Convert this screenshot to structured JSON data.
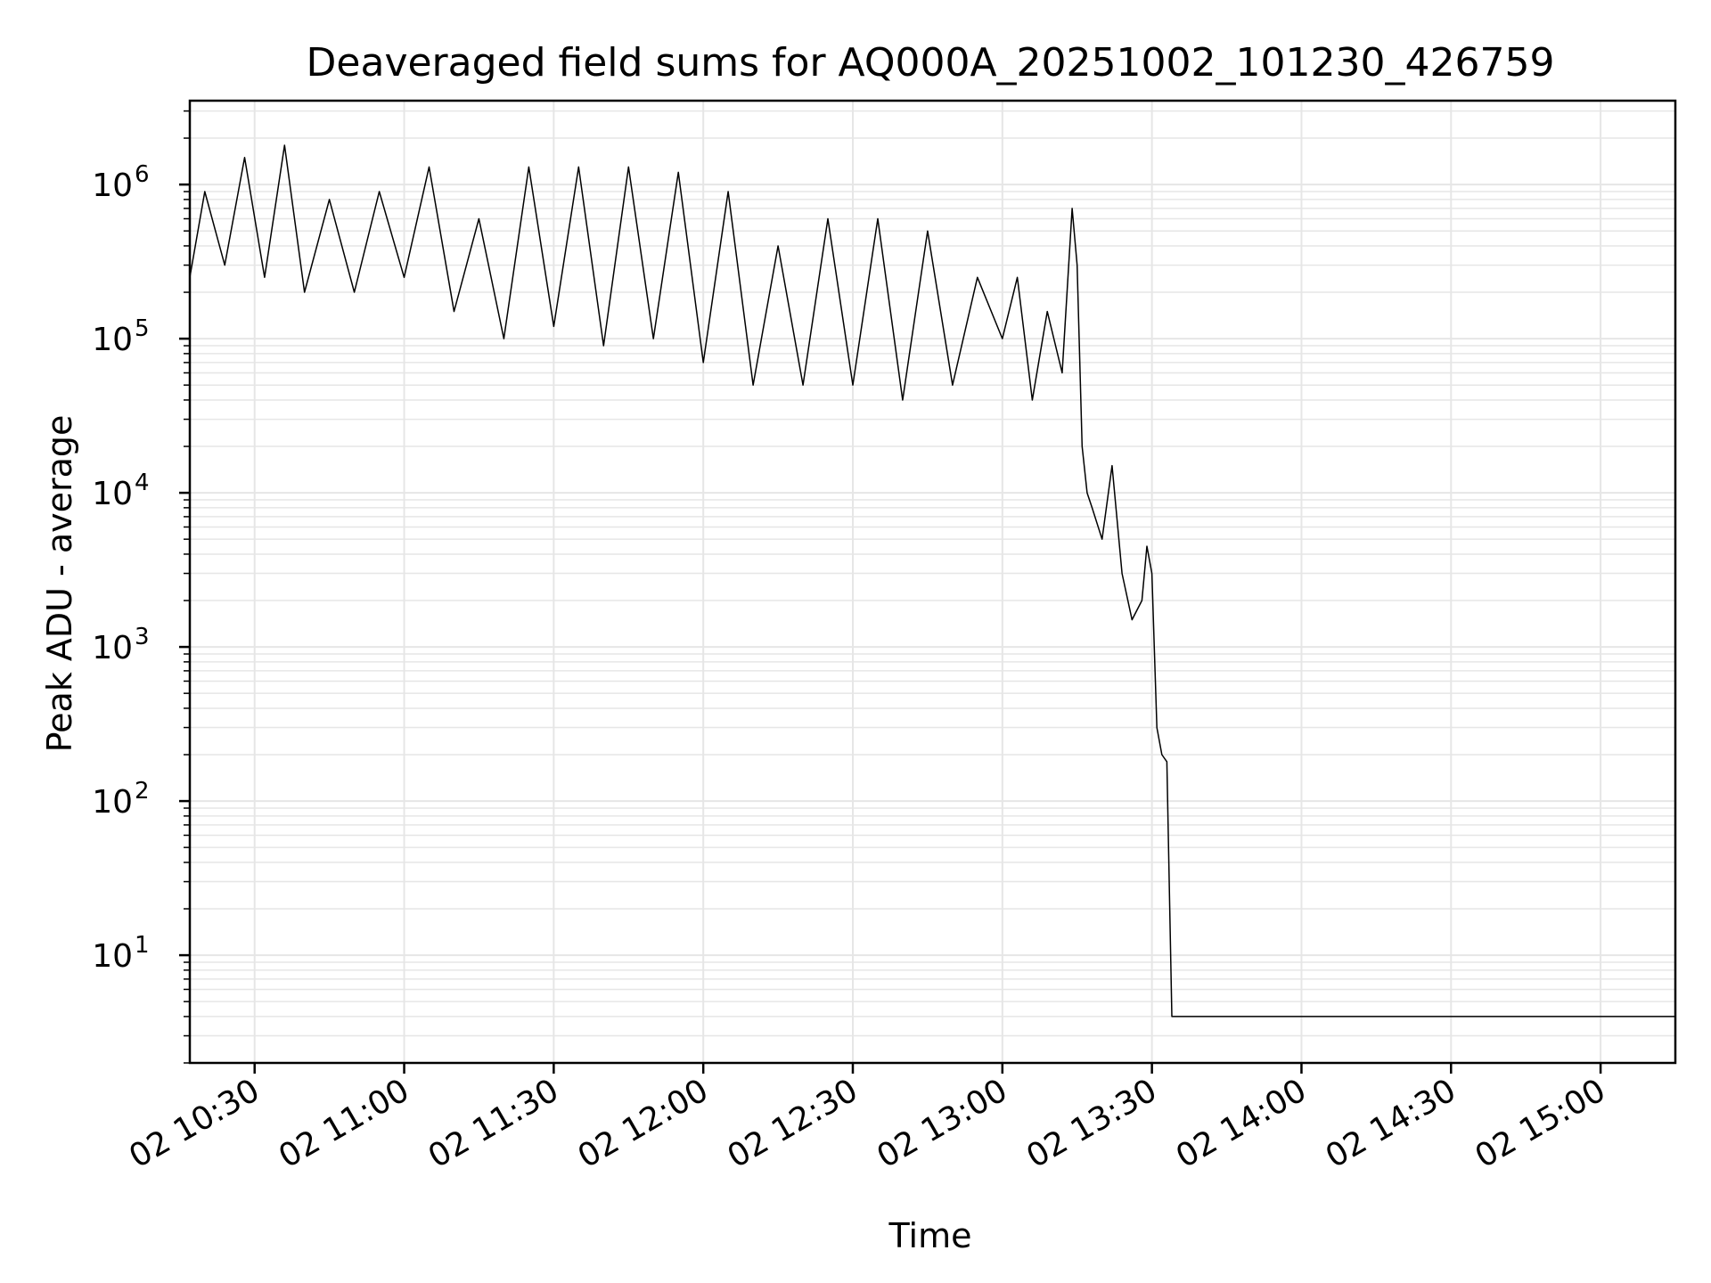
{
  "chart_data": {
    "type": "line",
    "title": "Deaveraged field sums for AQ000A_20251002_101230_426759",
    "xlabel": "Time",
    "ylabel": "Peak ADU - average",
    "yscale": "log",
    "grid": true,
    "line_color": "#000000",
    "grid_color": "#e6e6e6",
    "x_tick_labels": [
      "02 10:30",
      "02 11:00",
      "02 11:30",
      "02 12:00",
      "02 12:30",
      "02 13:00",
      "02 13:30",
      "02 14:00",
      "02 14:30",
      "02 15:00"
    ],
    "x_ticks": [
      "2025-10-02T10:30",
      "2025-10-02T11:00",
      "2025-10-02T11:30",
      "2025-10-02T12:00",
      "2025-10-02T12:30",
      "2025-10-02T13:00",
      "2025-10-02T13:30",
      "2025-10-02T14:00",
      "2025-10-02T14:30",
      "2025-10-02T15:00"
    ],
    "y_tick_labels": [
      {
        "base": "10",
        "exp": "1",
        "value": 10
      },
      {
        "base": "10",
        "exp": "2",
        "value": 100
      },
      {
        "base": "10",
        "exp": "3",
        "value": 1000
      },
      {
        "base": "10",
        "exp": "4",
        "value": 10000
      },
      {
        "base": "10",
        "exp": "5",
        "value": 100000
      },
      {
        "base": "10",
        "exp": "6",
        "value": 1000000
      }
    ],
    "xlim": [
      "2025-10-02T10:17",
      "2025-10-02T15:15"
    ],
    "ylim": [
      2,
      3500000
    ],
    "series": [
      {
        "x": [
          "2025-10-02T10:17",
          "2025-10-02T10:20",
          "2025-10-02T10:24",
          "2025-10-02T10:28",
          "2025-10-02T10:32",
          "2025-10-02T10:36",
          "2025-10-02T10:40",
          "2025-10-02T10:45",
          "2025-10-02T10:50",
          "2025-10-02T10:55",
          "2025-10-02T11:00",
          "2025-10-02T11:05",
          "2025-10-02T11:10",
          "2025-10-02T11:15",
          "2025-10-02T11:20",
          "2025-10-02T11:25",
          "2025-10-02T11:30",
          "2025-10-02T11:35",
          "2025-10-02T11:40",
          "2025-10-02T11:45",
          "2025-10-02T11:50",
          "2025-10-02T11:55",
          "2025-10-02T12:00",
          "2025-10-02T12:05",
          "2025-10-02T12:10",
          "2025-10-02T12:15",
          "2025-10-02T12:20",
          "2025-10-02T12:25",
          "2025-10-02T12:30",
          "2025-10-02T12:35",
          "2025-10-02T12:40",
          "2025-10-02T12:45",
          "2025-10-02T12:50",
          "2025-10-02T12:55",
          "2025-10-02T13:00",
          "2025-10-02T13:03",
          "2025-10-02T13:06",
          "2025-10-02T13:09",
          "2025-10-02T13:12",
          "2025-10-02T13:14",
          "2025-10-02T13:15",
          "2025-10-02T13:16",
          "2025-10-02T13:17",
          "2025-10-02T13:18",
          "2025-10-02T13:20",
          "2025-10-02T13:22",
          "2025-10-02T13:24",
          "2025-10-02T13:26",
          "2025-10-02T13:28",
          "2025-10-02T13:29",
          "2025-10-02T13:30",
          "2025-10-02T13:31",
          "2025-10-02T13:32",
          "2025-10-02T13:33",
          "2025-10-02T13:34",
          "2025-10-02T13:35",
          "2025-10-02T13:45",
          "2025-10-02T14:00",
          "2025-10-02T14:15",
          "2025-10-02T14:30",
          "2025-10-02T14:45",
          "2025-10-02T15:00",
          "2025-10-02T15:15"
        ],
        "values": [
          250000,
          900000,
          300000,
          1500000,
          250000,
          1800000,
          200000,
          800000,
          200000,
          900000,
          250000,
          1300000,
          150000,
          600000,
          100000,
          1300000,
          120000,
          1300000,
          90000,
          1300000,
          100000,
          1200000,
          70000,
          900000,
          50000,
          400000,
          50000,
          600000,
          50000,
          600000,
          40000,
          500000,
          50000,
          250000,
          100000,
          250000,
          40000,
          150000,
          60000,
          700000,
          300000,
          20000,
          10000,
          8000,
          5000,
          15000,
          3000,
          1500,
          2000,
          4500,
          3000,
          300,
          200,
          180,
          4,
          4,
          4,
          4,
          4,
          4,
          4,
          4,
          4
        ]
      }
    ]
  }
}
